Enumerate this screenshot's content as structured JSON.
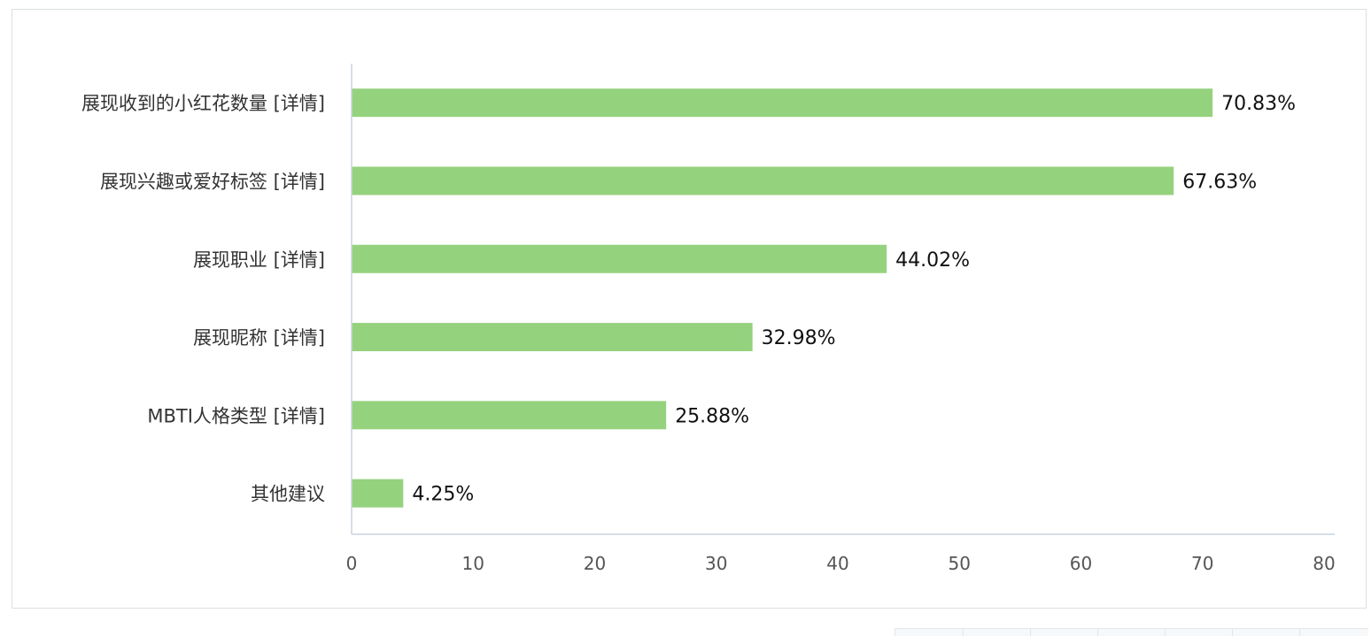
{
  "chart_data": {
    "type": "bar",
    "orientation": "horizontal",
    "categories": [
      "展现收到的小红花数量 [详情]",
      "展现兴趣或爱好标签 [详情]",
      "展现职业 [详情]",
      "展现昵称 [详情]",
      "MBTI人格类型 [详情]",
      "其他建议"
    ],
    "values": [
      70.83,
      67.63,
      44.02,
      32.98,
      25.88,
      4.25
    ],
    "value_labels": [
      "70.83%",
      "67.63%",
      "44.02%",
      "32.98%",
      "25.88%",
      "4.25%"
    ],
    "xlim": [
      0,
      80
    ],
    "xticks": [
      0,
      10,
      20,
      30,
      40,
      50,
      60,
      70,
      80
    ],
    "title": "",
    "xlabel": "",
    "ylabel": "",
    "grid": false,
    "colors": {
      "bar": "#95d27e",
      "axis": "#c8d3de"
    }
  }
}
